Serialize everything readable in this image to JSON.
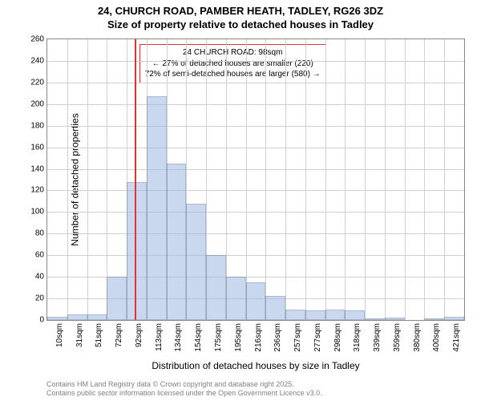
{
  "title_line1": "24, CHURCH ROAD, PAMBER HEATH, TADLEY, RG26 3DZ",
  "title_line2": "Size of property relative to detached houses in Tadley",
  "ylabel": "Number of detached properties",
  "xlabel": "Distribution of detached houses by size in Tadley",
  "footer_line1": "Contains HM Land Registry data © Crown copyright and database right 2025.",
  "footer_line2": "Contains public sector information licensed under the Open Government Licence v3.0.",
  "annotation_line1": "24 CHURCH ROAD: 98sqm",
  "annotation_line2": "← 27% of detached houses are smaller (220)",
  "annotation_line3": "72% of semi-detached houses are larger (580) →",
  "chart": {
    "type": "histogram",
    "ylim": [
      0,
      260
    ],
    "ytick_step": 20,
    "x_categories": [
      "10sqm",
      "31sqm",
      "51sqm",
      "72sqm",
      "92sqm",
      "113sqm",
      "134sqm",
      "154sqm",
      "175sqm",
      "195sqm",
      "216sqm",
      "236sqm",
      "257sqm",
      "277sqm",
      "298sqm",
      "318sqm",
      "339sqm",
      "359sqm",
      "380sqm",
      "400sqm",
      "421sqm"
    ],
    "values": [
      3,
      5,
      5,
      40,
      128,
      207,
      145,
      108,
      60,
      40,
      35,
      22,
      10,
      9,
      10,
      9,
      1,
      2,
      0,
      1,
      3
    ],
    "bar_fill": "#9db9e3",
    "bar_border": "#6a80a8",
    "bar_opacity": 0.55,
    "grid_color": "#d0d0d0",
    "border_color": "#888888",
    "background": "#ffffff",
    "marker_value": 98,
    "marker_x_min": 10,
    "marker_x_max": 431,
    "marker_color": "#dd3333",
    "annotation_border": "#dd3333",
    "tick_fontsize": 10,
    "label_fontsize": 12,
    "title_fontsize": 13
  }
}
